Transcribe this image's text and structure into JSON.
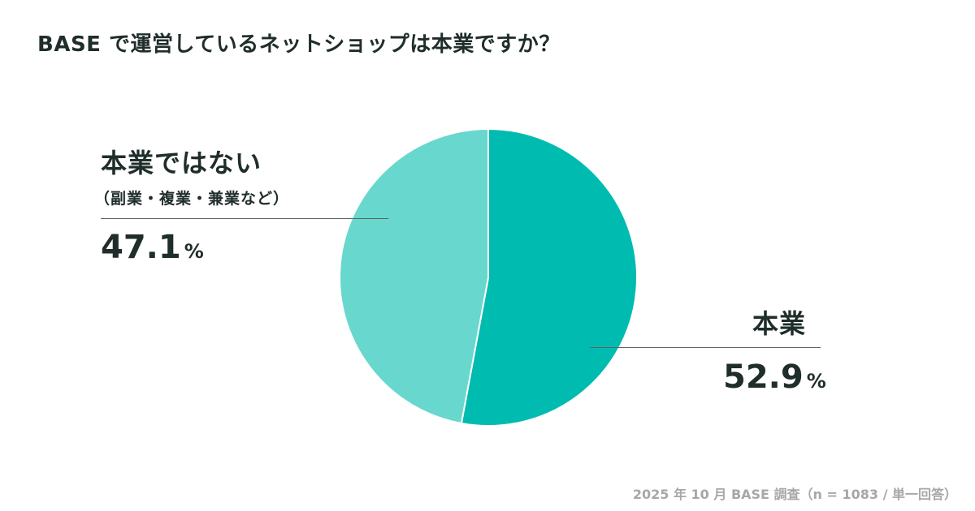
{
  "title": "BASE で運営しているネットショップは本業ですか？",
  "chart_data": {
    "type": "pie",
    "title": "BASE で運営しているネットショップは本業ですか？",
    "slices": [
      {
        "label": "本業",
        "value": 52.9,
        "unit": "%",
        "color": "#00bcb0"
      },
      {
        "label": "本業ではない",
        "sublabel": "（副業・複業・兼業など）",
        "value": 47.1,
        "unit": "%",
        "color": "#68d7ce"
      }
    ],
    "start_angle_deg": 0,
    "direction": "clockwise",
    "legend": "none",
    "separator_color": "#ffffff"
  },
  "labels": {
    "main": {
      "name": "本業",
      "value": "52.9",
      "pct": "%"
    },
    "side": {
      "name": "本業ではない",
      "sub": "（副業・複業・兼業など）",
      "value": "47.1",
      "pct": "%"
    }
  },
  "source": "2025 年 10 月 BASE 調査（n = 1083 / 単一回答）"
}
